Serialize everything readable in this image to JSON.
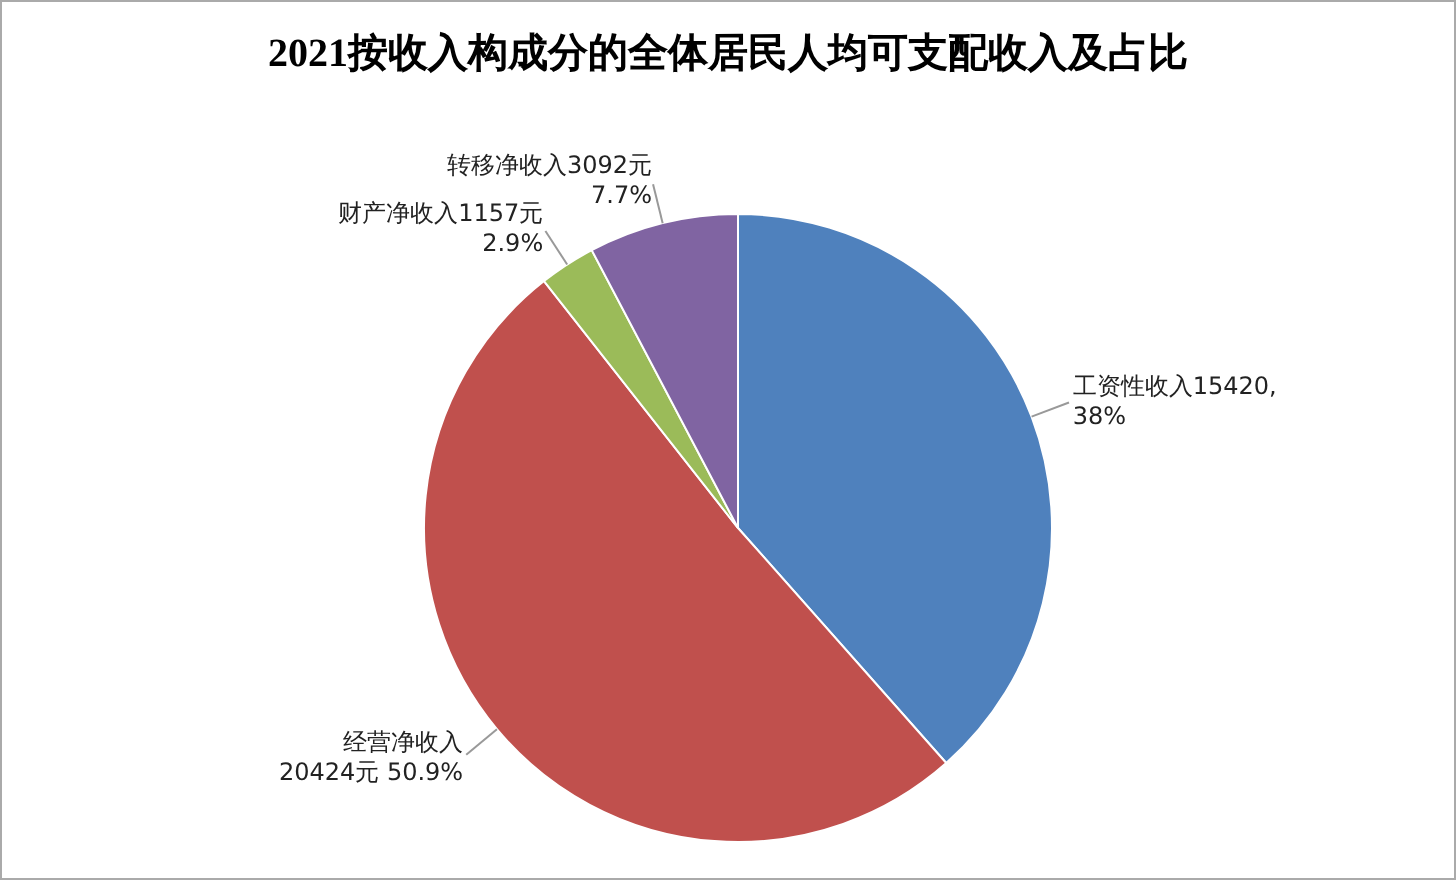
{
  "chart_data": {
    "type": "pie",
    "title": "2021按收入构成分的全体居民人均可支配收入及占比",
    "categories": [
      "工资性收入",
      "经营净收入",
      "财产净收入",
      "转移净收入"
    ],
    "values": [
      15420,
      20424,
      1157,
      3092
    ],
    "colors": [
      "#4f81bd",
      "#c0504d",
      "#9bbb59",
      "#8064a2"
    ],
    "value_labels": [
      "15420,\n38%",
      "\n20424元 50.9%",
      "1157元\n2.9%",
      "3092元\n7.7%"
    ],
    "legend": false
  }
}
